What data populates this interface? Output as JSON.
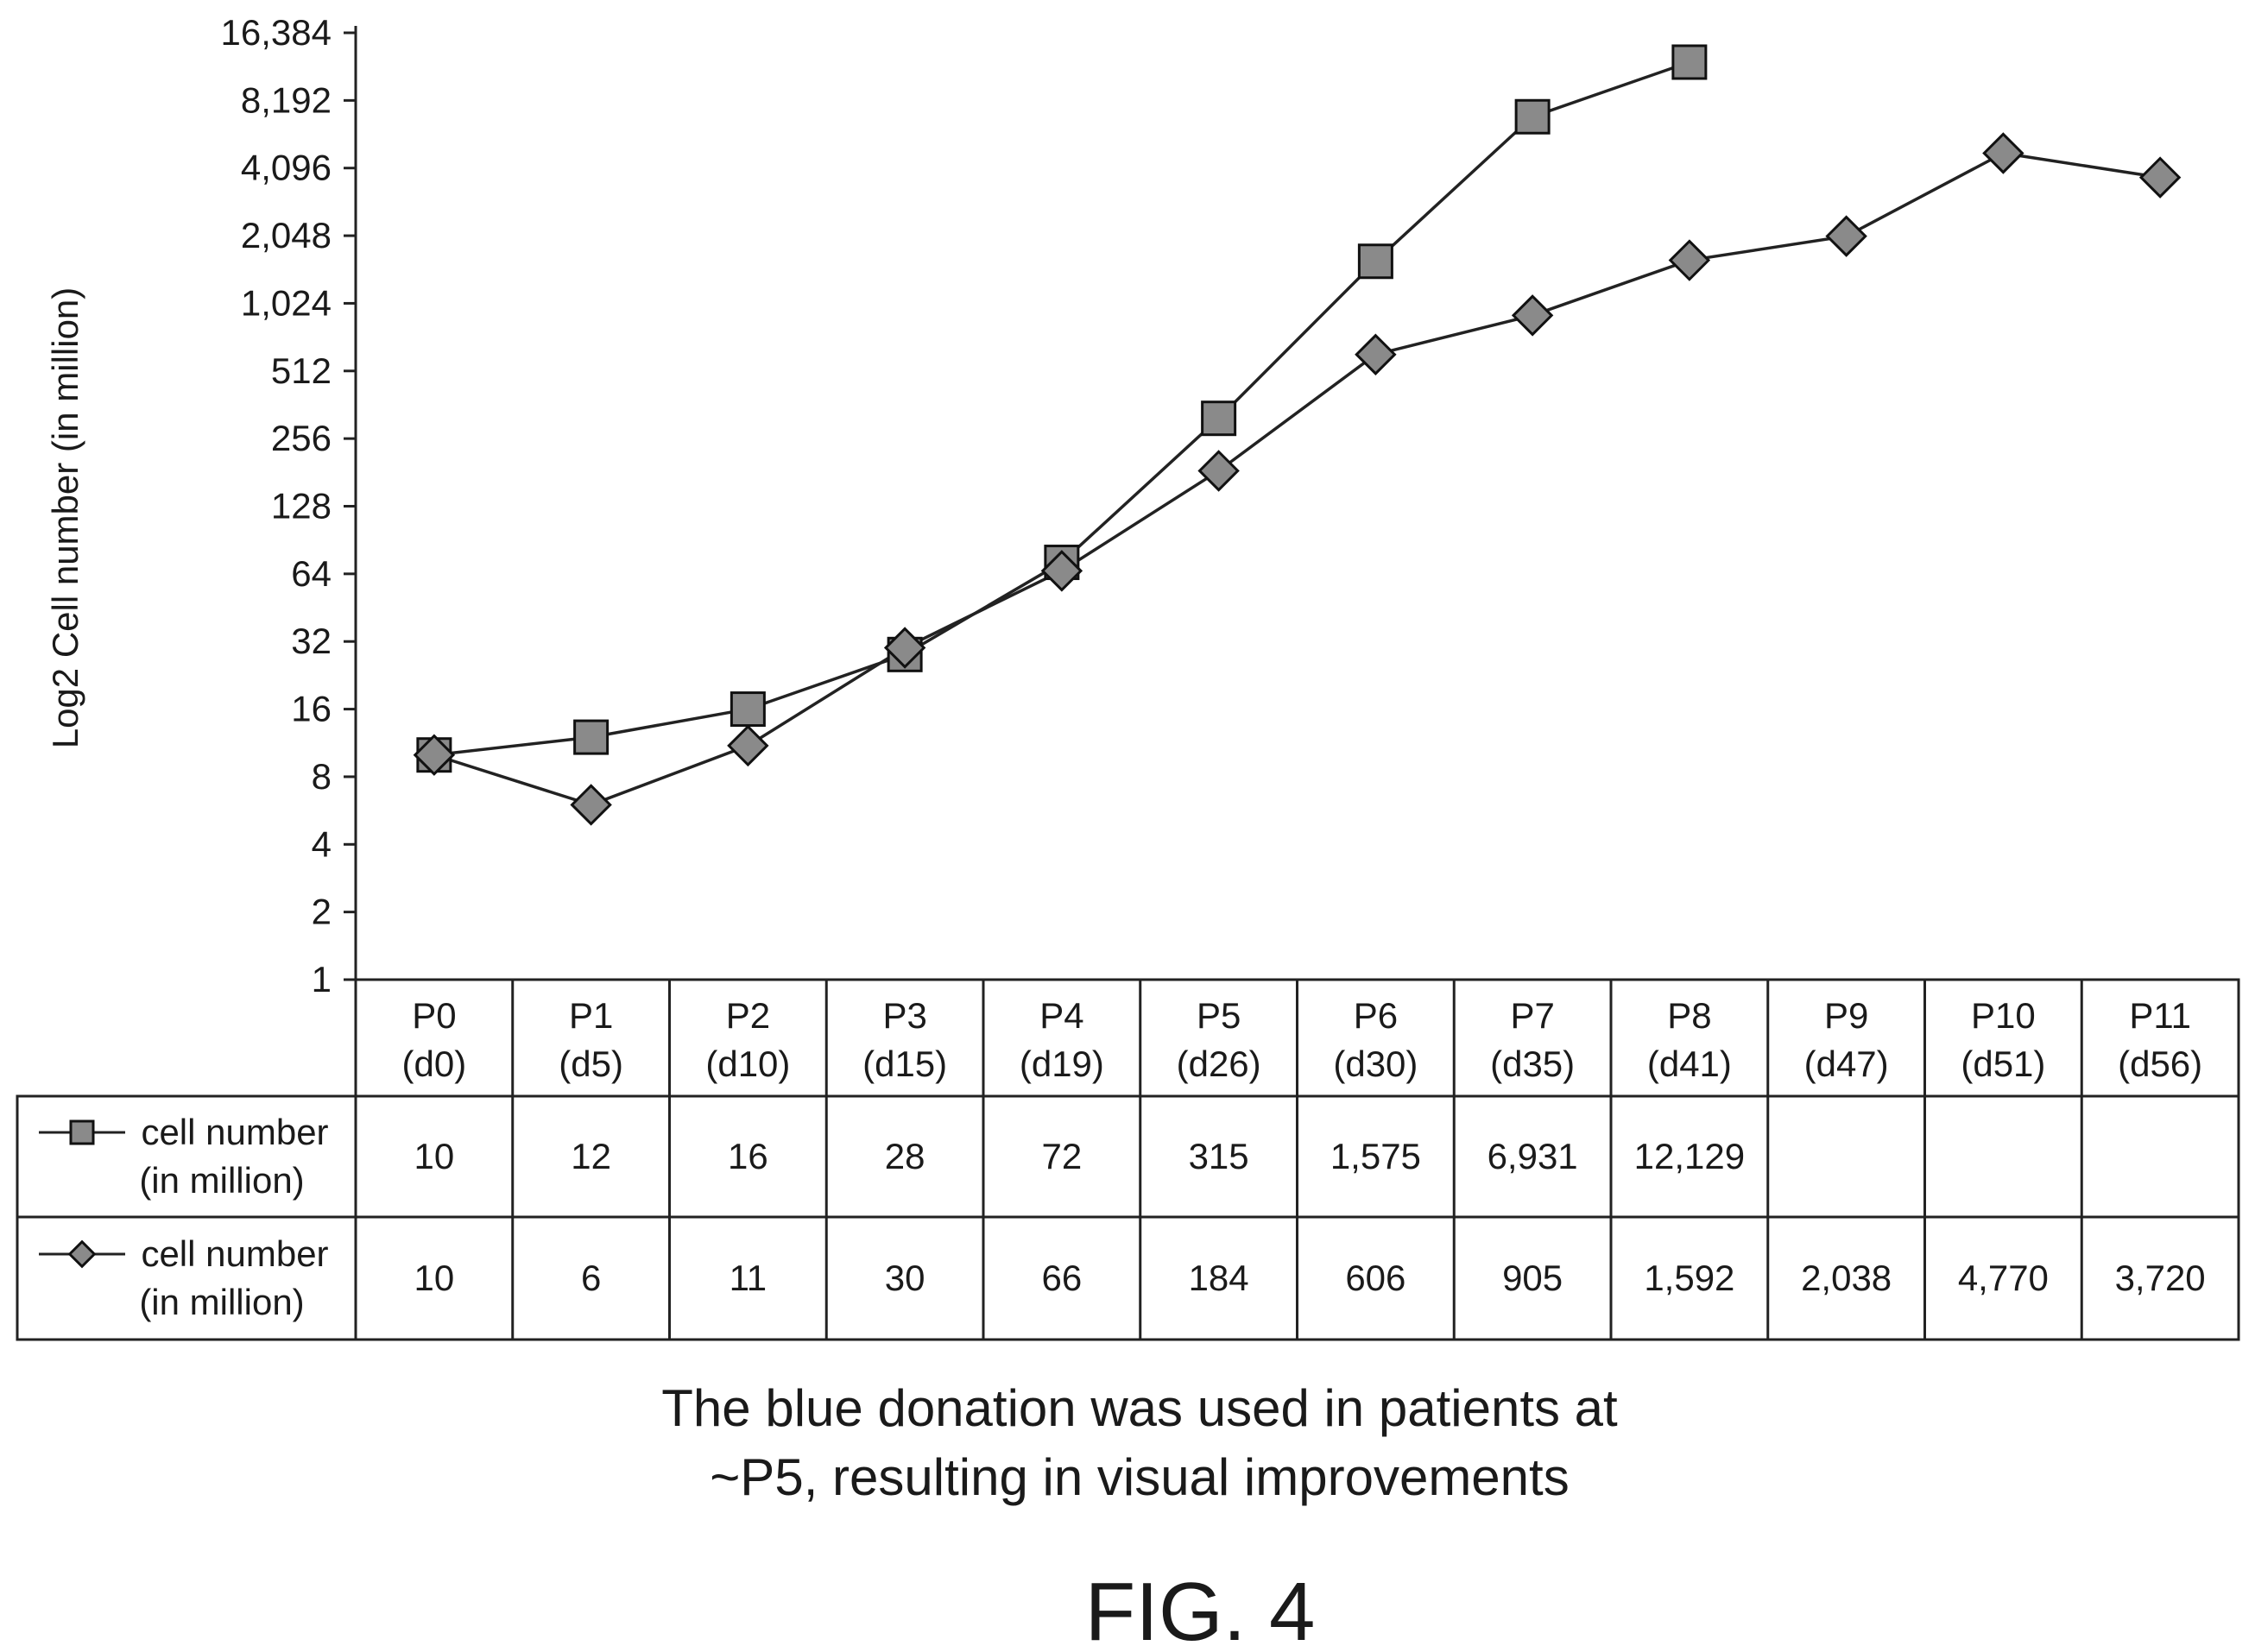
{
  "chart_data": {
    "type": "line",
    "ylabel": "Log2 Cell number (in million)",
    "yscale": "log2",
    "ylim": [
      1,
      16384
    ],
    "yticks": [
      "1",
      "2",
      "4",
      "8",
      "16",
      "32",
      "64",
      "128",
      "256",
      "512",
      "1,024",
      "2,048",
      "4,096",
      "8,192",
      "16,384"
    ],
    "categories": [
      [
        "P0",
        "(d0)"
      ],
      [
        "P1",
        "(d5)"
      ],
      [
        "P2",
        "(d10)"
      ],
      [
        "P3",
        "(d15)"
      ],
      [
        "P4",
        "(d19)"
      ],
      [
        "P5",
        "(d26)"
      ],
      [
        "P6",
        "(d30)"
      ],
      [
        "P7",
        "(d35)"
      ],
      [
        "P8",
        "(d41)"
      ],
      [
        "P9",
        "(d47)"
      ],
      [
        "P10",
        "(d51)"
      ],
      [
        "P11",
        "(d56)"
      ]
    ],
    "series": [
      {
        "name": "cell number (in million)",
        "marker": "square",
        "values": [
          10,
          12,
          16,
          28,
          72,
          315,
          1575,
          6931,
          12129,
          null,
          null,
          null
        ],
        "labels": [
          "10",
          "12",
          "16",
          "28",
          "72",
          "315",
          "1,575",
          "6,931",
          "12,129",
          "",
          "",
          ""
        ]
      },
      {
        "name": "cell number (in million)",
        "marker": "diamond",
        "values": [
          10,
          6,
          11,
          30,
          66,
          184,
          606,
          905,
          1592,
          2038,
          4770,
          3720
        ],
        "labels": [
          "10",
          "6",
          "11",
          "30",
          "66",
          "184",
          "606",
          "905",
          "1,592",
          "2,038",
          "4,770",
          "3,720"
        ]
      }
    ],
    "grid": false,
    "legend": "data-table"
  },
  "caption": {
    "line1": "The blue donation was used in patients at",
    "line2": "~P5, resulting in visual improvements"
  },
  "figure_label": "FIG. 4"
}
